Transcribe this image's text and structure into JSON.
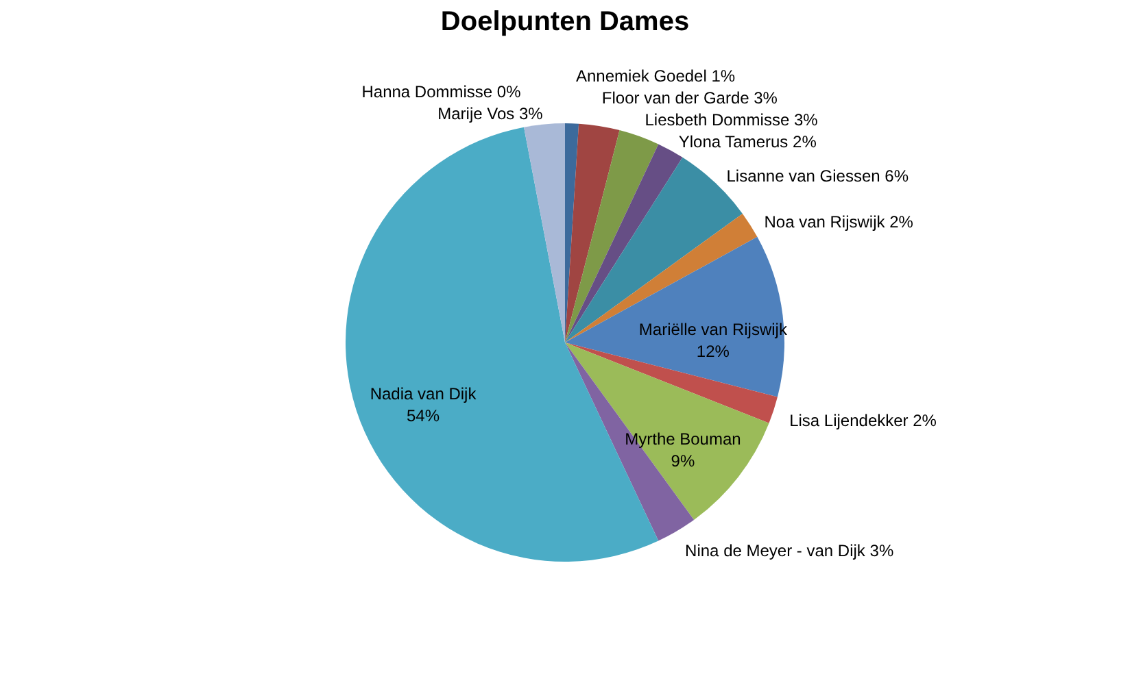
{
  "chart_data": {
    "type": "pie",
    "title": "Doelpunten Dames",
    "categories": [
      "Annemiek Goedel",
      "Floor van der Garde",
      "Liesbeth Dommisse",
      "Ylona Tamerus",
      "Lisanne van Giessen",
      "Noa van Rijswijk",
      "Mariëlle van Rijswijk",
      "Lisa Lijendekker",
      "Myrthe Bouman",
      "Nina de Meyer - van Dijk",
      "Nadia van Dijk",
      "Hanna Dommisse",
      "Marije Vos"
    ],
    "values": [
      1,
      3,
      3,
      2,
      6,
      2,
      12,
      2,
      9,
      3,
      54,
      0,
      3
    ],
    "value_labels": [
      "1%",
      "3%",
      "3%",
      "2%",
      "6%",
      "2%",
      "12%",
      "2%",
      "9%",
      "3%",
      "54%",
      "0%",
      "3%"
    ],
    "colors": [
      "#3c6a9c",
      "#a04542",
      "#7e9a48",
      "#664e85",
      "#3b8ea5",
      "#d07f37",
      "#4f81bd",
      "#c0504d",
      "#9bbb59",
      "#8064a2",
      "#4bacc6",
      "#f79646",
      "#a9b9d7"
    ],
    "legend": false
  }
}
